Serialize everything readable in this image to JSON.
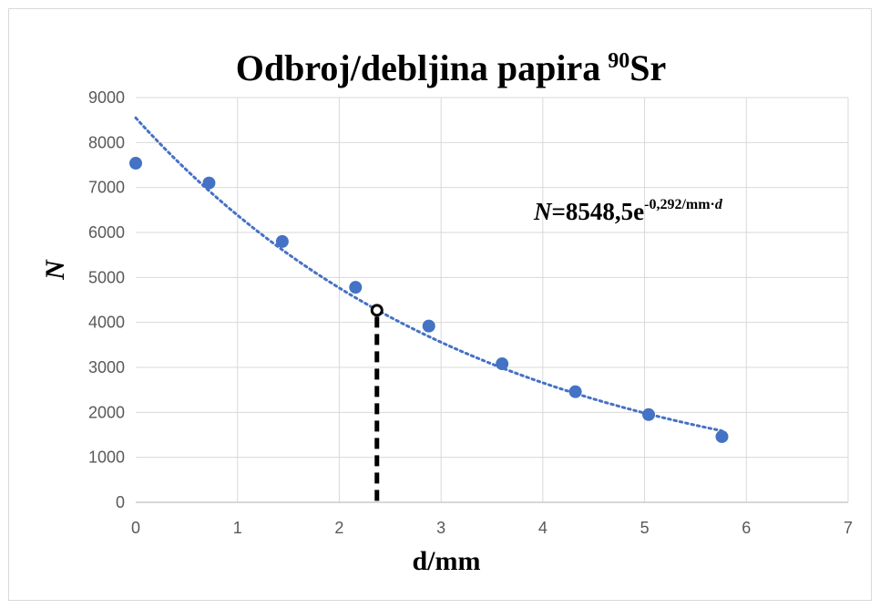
{
  "chart_data": {
    "type": "scatter",
    "title": "Odbroj/debljina papira",
    "title_superscript": "90",
    "title_suffix": "Sr",
    "xlabel": "d/mm",
    "ylabel": "N",
    "xlim": [
      0,
      7
    ],
    "ylim": [
      0,
      9000
    ],
    "xticks": [
      0,
      1,
      2,
      3,
      4,
      5,
      6,
      7
    ],
    "yticks": [
      0,
      1000,
      2000,
      3000,
      4000,
      5000,
      6000,
      7000,
      8000,
      9000
    ],
    "grid": true,
    "series": [
      {
        "color": "#4472c4",
        "points": [
          {
            "x": 0,
            "y": 7540
          },
          {
            "x": 0.72,
            "y": 7100
          },
          {
            "x": 1.44,
            "y": 5800
          },
          {
            "x": 2.16,
            "y": 4780
          },
          {
            "x": 2.88,
            "y": 3920
          },
          {
            "x": 3.6,
            "y": 3080
          },
          {
            "x": 4.32,
            "y": 2460
          },
          {
            "x": 5.04,
            "y": 1950
          },
          {
            "x": 5.76,
            "y": 1460
          }
        ]
      }
    ],
    "trendline": {
      "type": "exponential",
      "a": 8548.5,
      "b": -0.292,
      "x_range": [
        0,
        5.76
      ],
      "color": "#4472c4",
      "style": "dotted"
    },
    "equation": {
      "lhs": "N",
      "main": "=8548,5e",
      "exponent": "-0,292/mm·",
      "exponent_var": "d"
    },
    "highlight": {
      "x": 2.37,
      "y": 4270,
      "color": "#000000"
    }
  }
}
